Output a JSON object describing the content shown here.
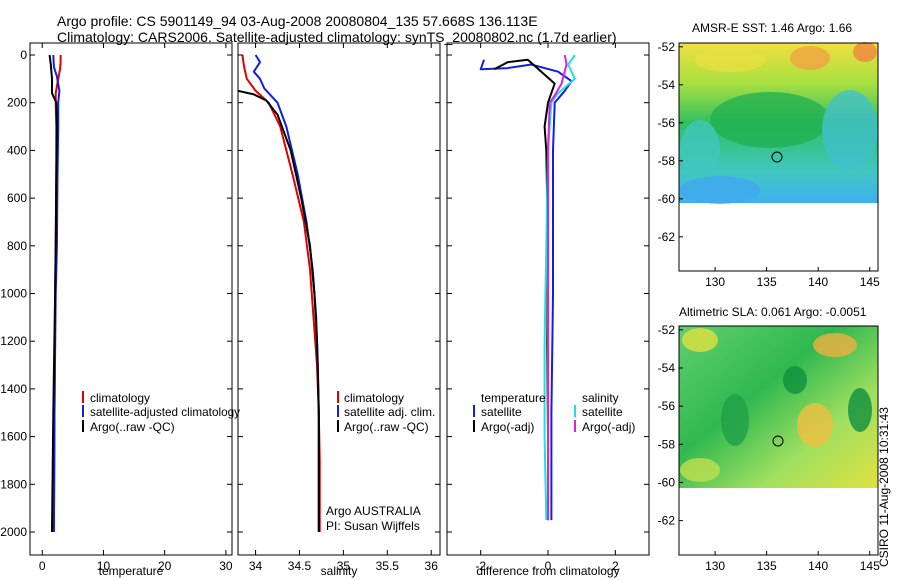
{
  "title": {
    "line1": "Argo profile: CS 5901149_94 03-Aug-2008 20080804_135 57.668S 136.113E",
    "line2": "Climatology: CARS2006. Satellite-adjusted climatology: synTS_20080802.nc (1.7d earlier)"
  },
  "credit": "CSIRO 11-Aug-2008 10:31:43",
  "colors": {
    "climatology": "#e00000",
    "satellite": "#1020e0",
    "argo": "#000000",
    "satellite_salinity": "#20e0e0",
    "argo_salinity": "#e020e0",
    "map_land": "#ffffff"
  },
  "chart_data": [
    {
      "type": "line",
      "id": "temperature",
      "xlabel": "temperature",
      "ylabel": "",
      "xlim": [
        -2,
        31
      ],
      "ylim": [
        2050,
        -10
      ],
      "xticks": [
        0,
        10,
        20,
        30
      ],
      "yticks": [
        0,
        200,
        400,
        600,
        800,
        1000,
        1200,
        1400,
        1600,
        1800,
        2000
      ],
      "legend": [
        "climatology",
        "satellite-adjusted climatology",
        "Argo(..raw -QC)"
      ],
      "series": [
        {
          "name": "climatology",
          "color": "#e00000",
          "points": [
            [
              3.0,
              0
            ],
            [
              3.0,
              30
            ],
            [
              2.9,
              60
            ],
            [
              2.6,
              100
            ],
            [
              2.2,
              160
            ],
            [
              2.2,
              200
            ],
            [
              2.3,
              300
            ],
            [
              2.3,
              500
            ],
            [
              2.2,
              800
            ],
            [
              2.1,
              1000
            ],
            [
              2.0,
              1500
            ],
            [
              1.9,
              2000
            ]
          ]
        },
        {
          "name": "satellite-adjusted climatology",
          "color": "#1020e0",
          "points": [
            [
              1.8,
              0
            ],
            [
              1.9,
              50
            ],
            [
              2.4,
              90
            ],
            [
              2.8,
              150
            ],
            [
              2.6,
              200
            ],
            [
              2.6,
              300
            ],
            [
              2.5,
              500
            ],
            [
              2.4,
              800
            ],
            [
              2.2,
              1000
            ],
            [
              2.0,
              1500
            ],
            [
              1.9,
              2000
            ]
          ]
        },
        {
          "name": "Argo(..raw -QC)",
          "color": "#000000",
          "points": [
            [
              1.2,
              0
            ],
            [
              1.4,
              40
            ],
            [
              1.6,
              100
            ],
            [
              1.6,
              160
            ],
            [
              2.3,
              200
            ],
            [
              2.4,
              300
            ],
            [
              2.3,
              500
            ],
            [
              2.2,
              800
            ],
            [
              2.1,
              1000
            ],
            [
              1.8,
              1500
            ],
            [
              1.6,
              2000
            ]
          ]
        }
      ]
    },
    {
      "type": "line",
      "id": "salinity",
      "xlabel": "salinity",
      "ylabel": "",
      "xlim": [
        33.8,
        36.1
      ],
      "ylim": [
        2050,
        -10
      ],
      "xticks": [
        34,
        34.5,
        35,
        35.5,
        36
      ],
      "yticks": [
        0,
        200,
        400,
        600,
        800,
        1000,
        1200,
        1400,
        1600,
        1800,
        2000
      ],
      "legend": [
        "climatology",
        "satellite adj. clim.",
        "Argo(..raw -QC)"
      ],
      "annotation": [
        "Argo AUSTRALIA",
        "PI: Susan Wijffels"
      ],
      "series": [
        {
          "name": "climatology",
          "color": "#e00000",
          "points": [
            [
              33.85,
              0
            ],
            [
              33.87,
              50
            ],
            [
              33.9,
              100
            ],
            [
              34.0,
              150
            ],
            [
              34.15,
              200
            ],
            [
              34.28,
              300
            ],
            [
              34.42,
              500
            ],
            [
              34.55,
              700
            ],
            [
              34.62,
              900
            ],
            [
              34.66,
              1100
            ],
            [
              34.7,
              1300
            ],
            [
              34.72,
              1500
            ],
            [
              34.73,
              1700
            ],
            [
              34.73,
              2000
            ]
          ]
        },
        {
          "name": "satellite adj. clim.",
          "color": "#1020e0",
          "points": [
            [
              34.0,
              0
            ],
            [
              34.05,
              30
            ],
            [
              33.98,
              70
            ],
            [
              34.05,
              100
            ],
            [
              34.1,
              140
            ],
            [
              34.25,
              200
            ],
            [
              34.35,
              300
            ],
            [
              34.48,
              500
            ],
            [
              34.58,
              700
            ],
            [
              34.65,
              900
            ],
            [
              34.69,
              1100
            ],
            [
              34.71,
              1300
            ],
            [
              34.72,
              1500
            ],
            [
              34.72,
              1700
            ],
            [
              34.72,
              2000
            ]
          ]
        },
        {
          "name": "Argo(..raw -QC)",
          "color": "#000000",
          "points": [
            [
              33.8,
              150
            ],
            [
              33.98,
              165
            ],
            [
              34.12,
              190
            ],
            [
              34.25,
              250
            ],
            [
              34.4,
              400
            ],
            [
              34.52,
              600
            ],
            [
              34.62,
              800
            ],
            [
              34.67,
              1000
            ],
            [
              34.7,
              1200
            ],
            [
              34.72,
              1500
            ],
            [
              34.72,
              2000
            ]
          ]
        }
      ]
    },
    {
      "type": "line",
      "id": "difference",
      "xlabel": "difference from climatology",
      "ylabel": "",
      "xlim": [
        -3,
        3
      ],
      "ylim": [
        2050,
        -10
      ],
      "xticks": [
        -2,
        0,
        2
      ],
      "yticks": [
        0,
        200,
        400,
        600,
        800,
        1000,
        1200,
        1400,
        1600,
        1800,
        2000
      ],
      "legend_left_header": "temperature",
      "legend_right_header": "salinity",
      "legend_left": [
        "satellite",
        "Argo(-adj)"
      ],
      "legend_right": [
        "satellite",
        "Argo(-adj)"
      ],
      "series": [
        {
          "name": "temperature satellite",
          "color": "#1020e0",
          "points": [
            [
              -1.9,
              20
            ],
            [
              -2.0,
              60
            ],
            [
              -1.2,
              55
            ],
            [
              -0.5,
              40
            ],
            [
              0.3,
              70
            ],
            [
              0.7,
              110
            ],
            [
              0.5,
              150
            ],
            [
              0.2,
              200
            ],
            [
              0.15,
              400
            ],
            [
              0.15,
              1000
            ],
            [
              0.1,
              1500
            ],
            [
              0.1,
              1950
            ]
          ]
        },
        {
          "name": "temperature Argo(-adj)",
          "color": "#000000",
          "points": [
            [
              -1.6,
              60
            ],
            [
              -1.2,
              30
            ],
            [
              -0.6,
              20
            ],
            [
              0.2,
              120
            ],
            [
              0.0,
              200
            ],
            [
              -0.1,
              300
            ],
            [
              -0.05,
              400
            ],
            [
              0.0,
              800
            ],
            [
              -0.02,
              1200
            ],
            [
              0.0,
              1600
            ],
            [
              0.0,
              1950
            ]
          ]
        },
        {
          "name": "salinity satellite",
          "color": "#20e0e0",
          "points": [
            [
              0.8,
              0
            ],
            [
              0.6,
              40
            ],
            [
              0.8,
              100
            ],
            [
              0.3,
              160
            ],
            [
              0.1,
              200
            ],
            [
              0.0,
              400
            ],
            [
              -0.05,
              800
            ],
            [
              -0.1,
              1200
            ],
            [
              -0.1,
              1600
            ],
            [
              -0.05,
              1950
            ]
          ]
        },
        {
          "name": "salinity Argo(-adj)",
          "color": "#e020e0",
          "points": [
            [
              0.5,
              0
            ],
            [
              0.55,
              40
            ],
            [
              0.4,
              120
            ],
            [
              0.2,
              170
            ],
            [
              0.05,
              200
            ],
            [
              0.0,
              400
            ],
            [
              0.0,
              1200
            ],
            [
              0.0,
              1950
            ]
          ]
        }
      ]
    },
    {
      "type": "heatmap",
      "id": "sst-map",
      "title": "AMSR-E SST: 1.46 Argo: 1.66",
      "xticks": [
        130,
        135,
        140,
        145
      ],
      "yticks": [
        -52,
        -54,
        -56,
        -58,
        -60,
        -62
      ],
      "xlim": [
        126.5,
        145.8
      ],
      "ylim": [
        -63.8,
        -51.8
      ],
      "data_extent_lat": [
        -60,
        -51.8
      ],
      "marker": {
        "lon": 136.113,
        "lat": -57.668
      }
    },
    {
      "type": "heatmap",
      "id": "sla-map",
      "title": "Altimetric SLA: 0.061 Argo: -0.0051",
      "xticks": [
        130,
        135,
        140,
        145
      ],
      "yticks": [
        -52,
        -54,
        -56,
        -58,
        -60,
        -62
      ],
      "xlim": [
        126.5,
        145.8
      ],
      "ylim": [
        -63.8,
        -51.8
      ],
      "data_extent_lat": [
        -60,
        -51.8
      ],
      "marker": {
        "lon": 136.113,
        "lat": -57.668
      }
    }
  ]
}
